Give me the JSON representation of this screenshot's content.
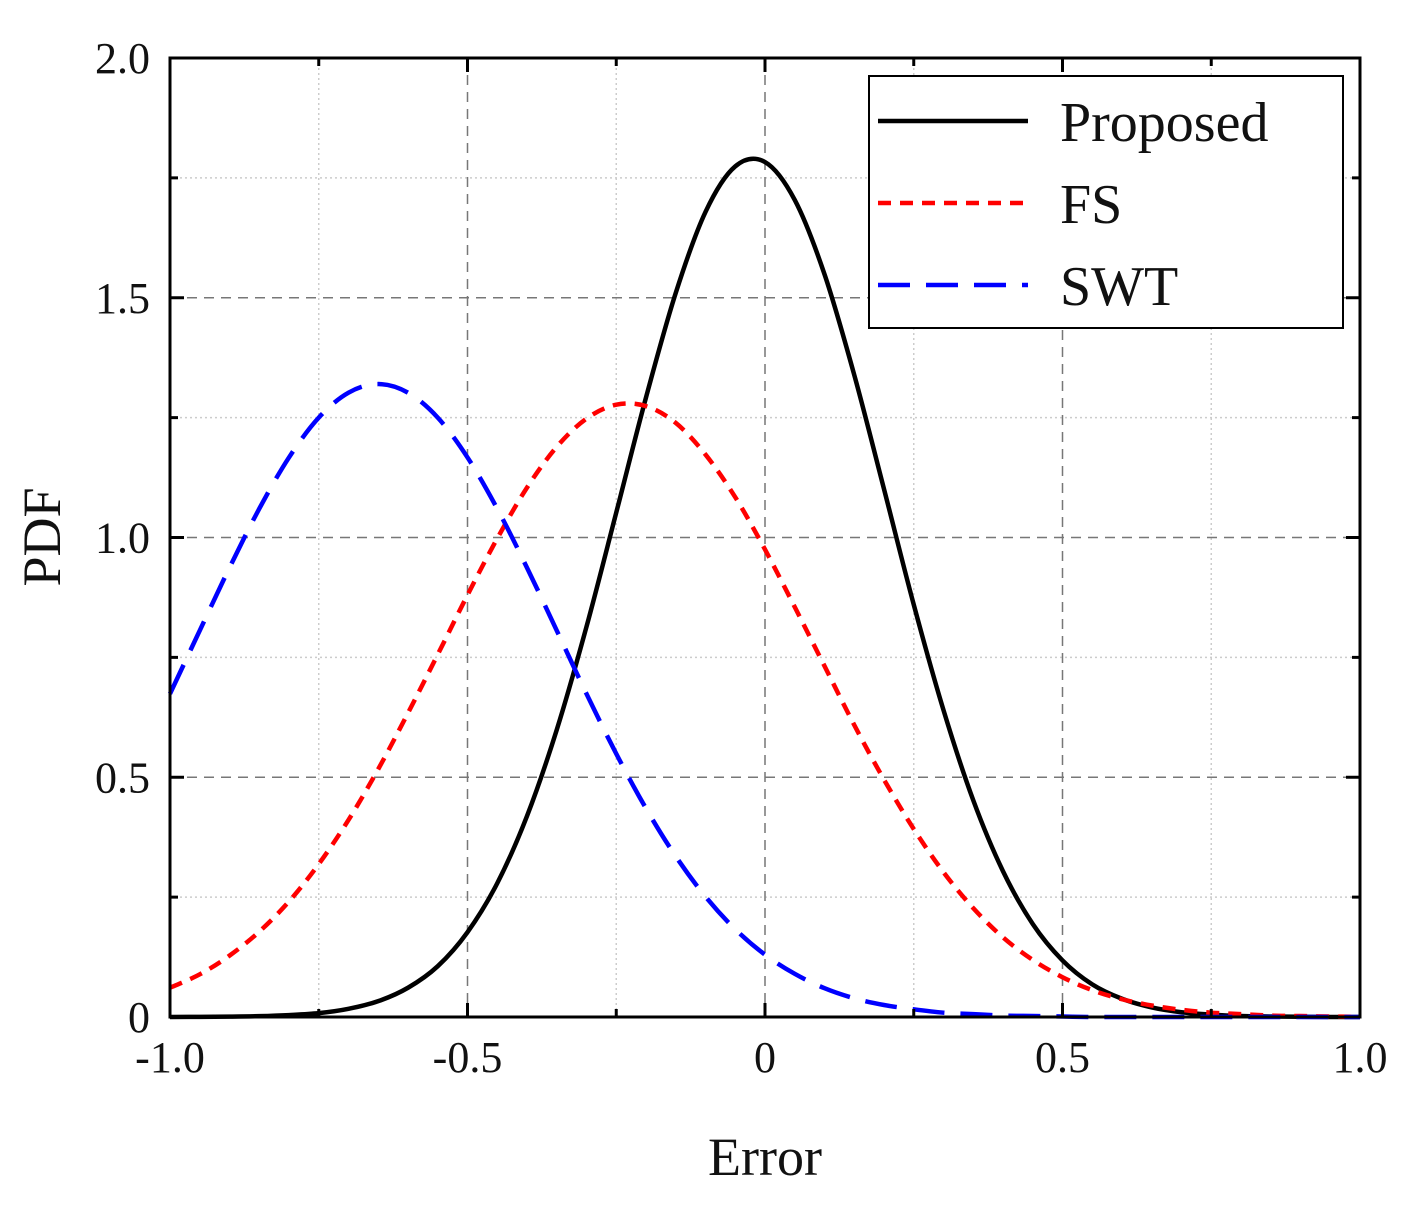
{
  "chart_data": {
    "type": "line",
    "title": "",
    "xlabel": "Error",
    "ylabel": "PDF",
    "xlim": [
      -1.0,
      1.0
    ],
    "ylim": [
      0,
      2.0
    ],
    "grid": true,
    "legend_position": "top-right",
    "x_ticks": [
      -1.0,
      -0.5,
      0,
      0.5,
      1.0
    ],
    "x_tick_labels": [
      "-1.0",
      "-0.5",
      "0",
      "0.5",
      "1.0"
    ],
    "y_ticks": [
      0,
      0.5,
      1.0,
      1.5,
      2.0
    ],
    "y_tick_labels": [
      "0",
      "0.5",
      "1.0",
      "1.5",
      "2.0"
    ],
    "x": [
      -1.0,
      -0.95,
      -0.9,
      -0.85,
      -0.8,
      -0.75,
      -0.7,
      -0.65,
      -0.6,
      -0.55,
      -0.5,
      -0.45,
      -0.4,
      -0.35,
      -0.3,
      -0.25,
      -0.2,
      -0.15,
      -0.1,
      -0.05,
      0.0,
      0.05,
      0.1,
      0.15,
      0.2,
      0.25,
      0.3,
      0.35,
      0.4,
      0.45,
      0.5,
      0.55,
      0.6,
      0.65,
      0.7,
      0.75,
      0.8,
      0.85,
      0.9,
      0.95,
      1.0
    ],
    "series": [
      {
        "name": "Proposed",
        "color": "#000000",
        "dash": "solid",
        "values": [
          0.0001,
          0.0003,
          0.0008,
          0.0018,
          0.004,
          0.008,
          0.017,
          0.033,
          0.061,
          0.106,
          0.177,
          0.279,
          0.419,
          0.599,
          0.814,
          1.052,
          1.292,
          1.51,
          1.679,
          1.774,
          1.783,
          1.704,
          1.549,
          1.339,
          1.101,
          0.86,
          0.64,
          0.452,
          0.304,
          0.194,
          0.118,
          0.068,
          0.038,
          0.02,
          0.01,
          0.005,
          0.002,
          0.001,
          0.0004,
          0.0001,
          0.0
        ]
      },
      {
        "name": "FS",
        "color": "#ff0000",
        "dash": "short-dash",
        "values": [
          0.061,
          0.089,
          0.128,
          0.178,
          0.241,
          0.319,
          0.411,
          0.517,
          0.634,
          0.756,
          0.88,
          0.998,
          1.104,
          1.189,
          1.248,
          1.277,
          1.274,
          1.239,
          1.173,
          1.084,
          0.975,
          0.855,
          0.732,
          0.609,
          0.495,
          0.392,
          0.302,
          0.227,
          0.166,
          0.119,
          0.083,
          0.056,
          0.037,
          0.024,
          0.015,
          0.009,
          0.006,
          0.003,
          0.002,
          0.001,
          0.0005
        ]
      },
      {
        "name": "SWT",
        "color": "#0000ff",
        "dash": "long-dash",
        "values": [
          0.674,
          0.806,
          0.937,
          1.06,
          1.167,
          1.25,
          1.302,
          1.32,
          1.302,
          1.25,
          1.167,
          1.06,
          0.937,
          0.806,
          0.674,
          0.549,
          0.435,
          0.335,
          0.251,
          0.183,
          0.13,
          0.09,
          0.06,
          0.039,
          0.025,
          0.016,
          0.009,
          0.006,
          0.003,
          0.002,
          0.001,
          0.0,
          0.0,
          0.0,
          0.0,
          0.0,
          0.0,
          0.0,
          0.0,
          0.0,
          0.0
        ]
      }
    ]
  }
}
